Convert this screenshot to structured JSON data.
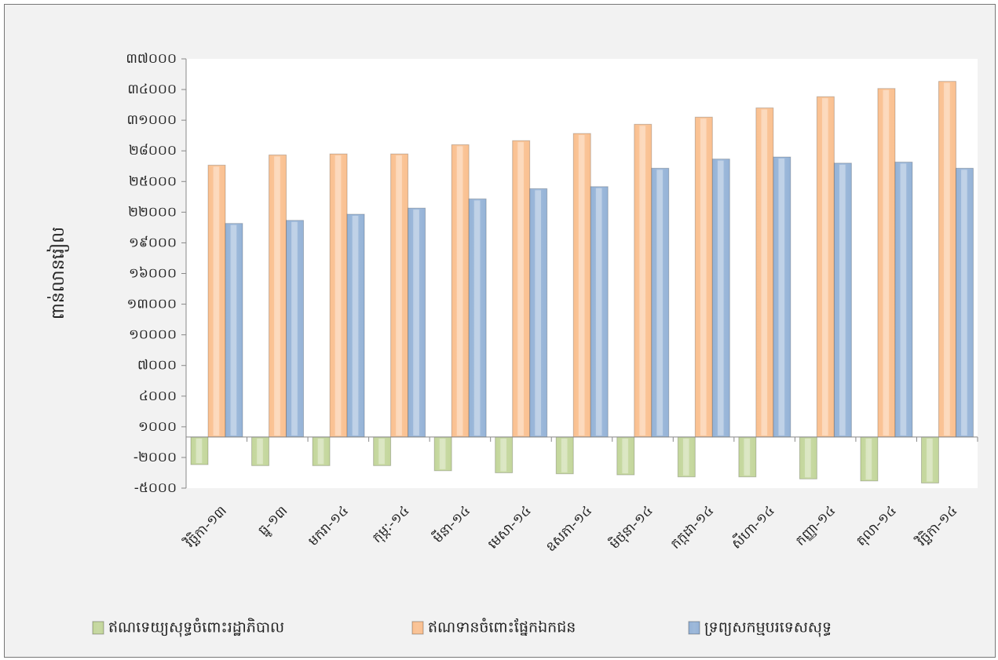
{
  "chart_data": {
    "type": "bar",
    "y_label": "ពាន់លានរៀល",
    "categories": [
      "វិច្ឆិកា-១៣",
      "ធ្នូ-១៣",
      "មករា-១៤",
      "កុម្ភៈ-១៤",
      "មីនា-១៤",
      "មេសា-១៤",
      "ឧសភា-១៤",
      "មិថុនា-១៤",
      "កក្កដា-១៤",
      "សីហា-១៤",
      "កញ្ញា-១៤",
      "តុលា-១៤",
      "វិច្ឆិកា-១៤"
    ],
    "series": [
      {
        "name": "ឥណទេយ្យសុទ្ធចំពោះរដ្ឋាភិបាល",
        "color": "#c3d69b",
        "values": [
          -2700,
          -2800,
          -2800,
          -2800,
          -3300,
          -3500,
          -3600,
          -3700,
          -3900,
          -3900,
          -4100,
          -4300,
          -4500
        ]
      },
      {
        "name": "ឥណទានចំពោះផ្នែកឯកជន",
        "color": "#fac090",
        "values": [
          26600,
          27600,
          27700,
          27700,
          28600,
          29000,
          29700,
          30600,
          31300,
          32200,
          33300,
          34100,
          34800
        ]
      },
      {
        "name": "ទ្រព្យសកម្មបរទេសសុទ្ធ",
        "color": "#95b3d7",
        "values": [
          20900,
          21200,
          21800,
          22400,
          23300,
          24300,
          24500,
          26300,
          27200,
          27400,
          26800,
          26900,
          26300
        ]
      }
    ],
    "ylim": [
      -5000,
      37000
    ],
    "yticks": [
      {
        "value": -5000,
        "label": "-៥០០០"
      },
      {
        "value": -2000,
        "label": "-២០០០"
      },
      {
        "value": 1000,
        "label": "១០០០"
      },
      {
        "value": 4000,
        "label": "៤០០០"
      },
      {
        "value": 7000,
        "label": "៧០០០"
      },
      {
        "value": 10000,
        "label": "១០០០០"
      },
      {
        "value": 13000,
        "label": "១៣០០០"
      },
      {
        "value": 16000,
        "label": "១៦០០០"
      },
      {
        "value": 19000,
        "label": "១៩០០០"
      },
      {
        "value": 22000,
        "label": "២២០០០"
      },
      {
        "value": 25000,
        "label": "២៥០០០"
      },
      {
        "value": 28000,
        "label": "២៨០០០"
      },
      {
        "value": 31000,
        "label": "៣១០០០"
      },
      {
        "value": 34000,
        "label": "៣៤០០០"
      },
      {
        "value": 37000,
        "label": "៣៧០០០"
      }
    ],
    "grid": false,
    "legend": "bottom"
  }
}
